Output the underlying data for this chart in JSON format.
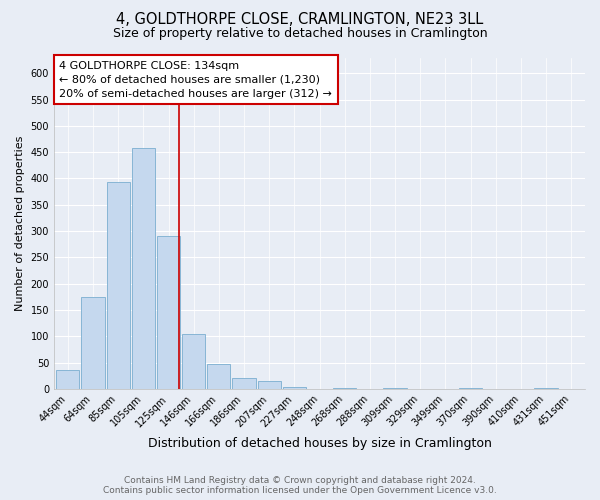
{
  "title": "4, GOLDTHORPE CLOSE, CRAMLINGTON, NE23 3LL",
  "subtitle": "Size of property relative to detached houses in Cramlington",
  "xlabel": "Distribution of detached houses by size in Cramlington",
  "ylabel": "Number of detached properties",
  "bar_labels": [
    "44sqm",
    "64sqm",
    "85sqm",
    "105sqm",
    "125sqm",
    "146sqm",
    "166sqm",
    "186sqm",
    "207sqm",
    "227sqm",
    "248sqm",
    "268sqm",
    "288sqm",
    "309sqm",
    "329sqm",
    "349sqm",
    "370sqm",
    "390sqm",
    "410sqm",
    "431sqm",
    "451sqm"
  ],
  "bar_heights": [
    35,
    175,
    393,
    458,
    290,
    105,
    48,
    20,
    15,
    3,
    0,
    2,
    0,
    2,
    0,
    0,
    2,
    0,
    0,
    2,
    0
  ],
  "bar_color": "#c5d8ee",
  "bar_edge_color": "#7aaed0",
  "vline_x": 4.42,
  "vline_color": "#cc0000",
  "annotation_text": "4 GOLDTHORPE CLOSE: 134sqm\n← 80% of detached houses are smaller (1,230)\n20% of semi-detached houses are larger (312) →",
  "annotation_box_color": "#ffffff",
  "annotation_box_edge": "#cc0000",
  "ylim": [
    0,
    630
  ],
  "yticks": [
    0,
    50,
    100,
    150,
    200,
    250,
    300,
    350,
    400,
    450,
    500,
    550,
    600
  ],
  "footer_line1": "Contains HM Land Registry data © Crown copyright and database right 2024.",
  "footer_line2": "Contains public sector information licensed under the Open Government Licence v3.0.",
  "bg_color": "#e8edf5",
  "plot_bg_color": "#e8edf5",
  "grid_color": "#ffffff",
  "title_fontsize": 10.5,
  "subtitle_fontsize": 9,
  "xlabel_fontsize": 9,
  "ylabel_fontsize": 8,
  "tick_fontsize": 7,
  "annotation_fontsize": 8,
  "footer_fontsize": 6.5
}
